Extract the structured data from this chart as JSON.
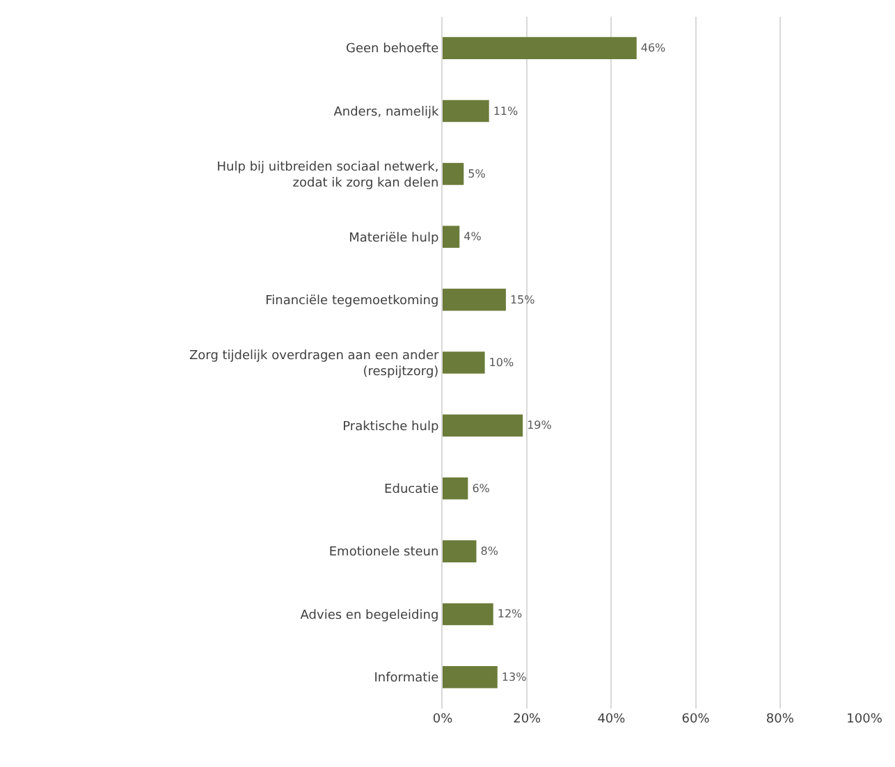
{
  "chart_data": {
    "type": "bar",
    "orientation": "horizontal",
    "categories": [
      "Geen behoefte",
      "Anders, namelijk",
      "Hulp bij uitbreiden sociaal netwerk,\nzodat ik zorg kan delen",
      "Materiële hulp",
      "Financiële tegemoetkoming",
      "Zorg tijdelijk overdragen aan een ander\n(respijtzorg)",
      "Praktische hulp",
      "Educatie",
      "Emotionele steun",
      "Advies en begeleiding",
      "Informatie"
    ],
    "values": [
      46,
      11,
      5,
      4,
      15,
      10,
      19,
      6,
      8,
      12,
      13
    ],
    "value_labels": [
      "46%",
      "11%",
      "5%",
      "4%",
      "15%",
      "10%",
      "19%",
      "6%",
      "8%",
      "12%",
      "13%"
    ],
    "color": "#6b7b3a",
    "xlim": [
      0,
      100
    ],
    "xticks": [
      {
        "value": 0,
        "label": "0%"
      },
      {
        "value": 20,
        "label": "20%"
      },
      {
        "value": 40,
        "label": "40%"
      },
      {
        "value": 60,
        "label": "60%"
      },
      {
        "value": 80,
        "label": "80%"
      },
      {
        "value": 100,
        "label": "100%"
      }
    ],
    "grid": "x",
    "legend": false
  }
}
